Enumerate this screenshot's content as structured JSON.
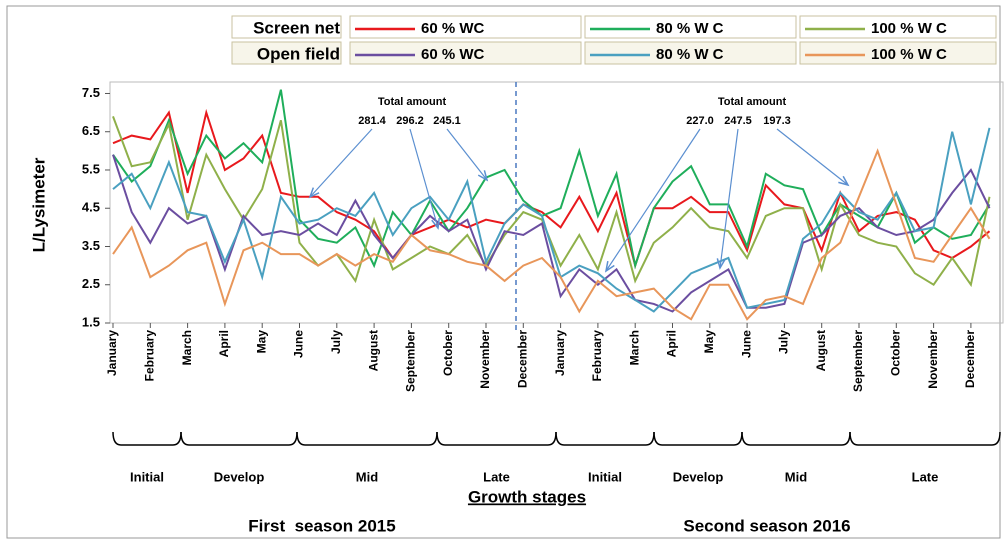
{
  "chart_data": {
    "type": "line",
    "ylabel": "L/Lysimeter",
    "xlabel": "Growth stages",
    "categories": [
      "January",
      null,
      "February",
      null,
      "March",
      null,
      "April",
      null,
      "May",
      null,
      "June",
      null,
      "July",
      null,
      "August",
      null,
      "September",
      null,
      "October",
      null,
      "November",
      null,
      "December",
      null,
      "January",
      null,
      "February",
      null,
      "March",
      null,
      "April",
      null,
      "May",
      null,
      "June",
      null,
      "July",
      null,
      "August",
      null,
      "September",
      null,
      "October",
      null,
      "November",
      null,
      "December",
      null
    ],
    "ylim": [
      1.5,
      7.8
    ],
    "yticks": [
      1.5,
      2.5,
      3.5,
      4.5,
      5.5,
      6.5,
      7.5
    ],
    "groups": [
      {
        "name": "Screen net",
        "series": [
          {
            "name": "60 % WC",
            "color": "#e8191d",
            "values": [
              6.2,
              6.4,
              6.3,
              7.0,
              4.9,
              7.0,
              5.5,
              5.8,
              6.4,
              4.9,
              4.8,
              4.8,
              4.4,
              4.2,
              3.9,
              3.2,
              3.8,
              4.0,
              4.2,
              4.0,
              4.2,
              4.1,
              4.6,
              4.4,
              4.0,
              4.8,
              3.9,
              4.9,
              3.0,
              4.5,
              4.5,
              4.8,
              4.4,
              4.4,
              3.4,
              5.1,
              4.6,
              4.5,
              3.4,
              4.9,
              3.9,
              4.3,
              4.4,
              4.2,
              3.4,
              3.2,
              3.5,
              3.9
            ]
          },
          {
            "name": "80 % W C",
            "color": "#1fae5b",
            "values": [
              5.9,
              5.2,
              5.6,
              6.8,
              5.4,
              6.4,
              5.8,
              6.2,
              5.7,
              7.6,
              4.2,
              3.7,
              3.6,
              4.0,
              3.0,
              4.4,
              3.8,
              4.7,
              3.9,
              4.5,
              5.3,
              5.5,
              4.7,
              4.3,
              4.5,
              6.0,
              4.3,
              5.4,
              3.0,
              4.5,
              5.2,
              5.6,
              4.6,
              4.6,
              3.5,
              5.4,
              5.1,
              5.0,
              3.8,
              4.6,
              4.3,
              4.0,
              4.9,
              3.6,
              4.0,
              3.7,
              3.8,
              4.6
            ]
          },
          {
            "name": "100 % W C",
            "color": "#8fb04a",
            "values": [
              6.9,
              5.6,
              5.7,
              6.7,
              4.2,
              5.9,
              5.0,
              4.2,
              5.0,
              6.8,
              3.6,
              3.0,
              3.3,
              2.6,
              4.2,
              2.9,
              3.2,
              3.5,
              3.3,
              3.8,
              3.0,
              3.8,
              4.4,
              4.2,
              3.0,
              3.8,
              2.9,
              4.4,
              2.6,
              3.6,
              4.0,
              4.5,
              4.0,
              3.9,
              3.2,
              4.3,
              4.5,
              4.5,
              2.9,
              4.6,
              3.8,
              3.6,
              3.5,
              2.8,
              2.5,
              3.2,
              2.5,
              4.8
            ]
          }
        ]
      },
      {
        "name": "Open field",
        "series": [
          {
            "name": "60 % WC",
            "color": "#6b4ea0",
            "values": [
              5.9,
              4.4,
              3.6,
              4.5,
              4.1,
              4.3,
              2.9,
              4.3,
              3.8,
              3.9,
              3.8,
              4.1,
              3.8,
              4.7,
              3.8,
              3.2,
              3.8,
              4.3,
              3.9,
              4.2,
              2.9,
              3.9,
              3.8,
              4.1,
              2.2,
              2.9,
              2.5,
              2.9,
              2.1,
              2.0,
              1.8,
              2.3,
              2.6,
              2.9,
              1.9,
              1.9,
              2.0,
              3.6,
              3.8,
              4.3,
              4.5,
              4.0,
              3.8,
              3.9,
              4.2,
              4.9,
              5.5,
              4.5
            ]
          },
          {
            "name": "80 % W C",
            "color": "#4aa0c0",
            "values": [
              5.0,
              5.4,
              4.5,
              5.7,
              4.4,
              4.3,
              3.1,
              4.2,
              2.7,
              4.8,
              4.1,
              4.2,
              4.5,
              4.3,
              4.9,
              3.8,
              4.5,
              4.8,
              4.2,
              5.2,
              3.1,
              4.1,
              4.6,
              4.3,
              2.7,
              3.0,
              2.8,
              2.4,
              2.1,
              1.8,
              2.3,
              2.8,
              3.0,
              3.2,
              1.9,
              2.0,
              2.1,
              3.7,
              4.1,
              4.9,
              4.4,
              4.2,
              4.9,
              3.9,
              4.0,
              6.5,
              4.6,
              6.6
            ]
          },
          {
            "name": "100 % W C",
            "color": "#e8965a",
            "values": [
              3.3,
              4.0,
              2.7,
              3.0,
              3.4,
              3.6,
              2.0,
              3.4,
              3.6,
              3.3,
              3.3,
              3.0,
              3.3,
              3.0,
              3.3,
              3.1,
              3.8,
              3.4,
              3.3,
              3.1,
              3.0,
              2.6,
              3.0,
              3.2,
              2.7,
              1.8,
              2.6,
              2.2,
              2.3,
              2.4,
              1.9,
              1.6,
              2.5,
              2.5,
              1.6,
              2.1,
              2.2,
              2.0,
              3.2,
              3.6,
              4.8,
              6.0,
              4.6,
              3.2,
              3.1,
              3.8,
              4.5,
              3.7
            ]
          }
        ]
      }
    ],
    "annotations": [
      {
        "title": "Total amount",
        "totals": [
          "281.4",
          "296.2",
          "245.1"
        ]
      },
      {
        "title": "Total amount",
        "totals": [
          "227.0",
          "247.5",
          "197.3"
        ]
      }
    ],
    "stages": [
      "Initial",
      "Develop",
      "Mid",
      "Late",
      "Initial",
      "Develop",
      "Mid",
      "Late"
    ],
    "seasons": [
      "First  season 2015",
      "Second season 2016"
    ]
  }
}
